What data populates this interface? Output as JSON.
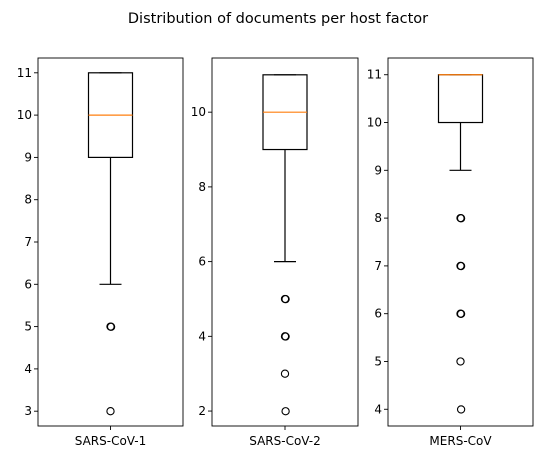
{
  "title": "Distribution of documents per host factor",
  "colors": {
    "box": "#000000",
    "median": "#ff7f0e",
    "background": "#ffffff"
  },
  "chart_data": [
    {
      "type": "box",
      "category": "SARS-CoV-1",
      "ylim": [
        2.65,
        11.35
      ],
      "yticks": [
        3,
        4,
        5,
        6,
        7,
        8,
        9,
        10,
        11
      ],
      "q1": 9,
      "median": 10,
      "q3": 11,
      "whisker_low": 6,
      "whisker_high": 11,
      "outliers": [
        5,
        5,
        3
      ]
    },
    {
      "type": "box",
      "category": "SARS-CoV-2",
      "ylim": [
        1.6,
        11.45
      ],
      "yticks": [
        2,
        4,
        6,
        8,
        10
      ],
      "q1": 9,
      "median": 10,
      "q3": 11,
      "whisker_low": 6,
      "whisker_high": 11,
      "outliers": [
        5,
        5,
        4,
        4,
        3,
        2
      ]
    },
    {
      "type": "box",
      "category": "MERS-CoV",
      "ylim": [
        3.65,
        11.35
      ],
      "yticks": [
        4,
        5,
        6,
        7,
        8,
        9,
        10,
        11
      ],
      "q1": 10,
      "median": 11,
      "q3": 11,
      "whisker_low": 9,
      "whisker_high": 11,
      "outliers": [
        8,
        8,
        7,
        7,
        6,
        6,
        5,
        4
      ]
    }
  ]
}
